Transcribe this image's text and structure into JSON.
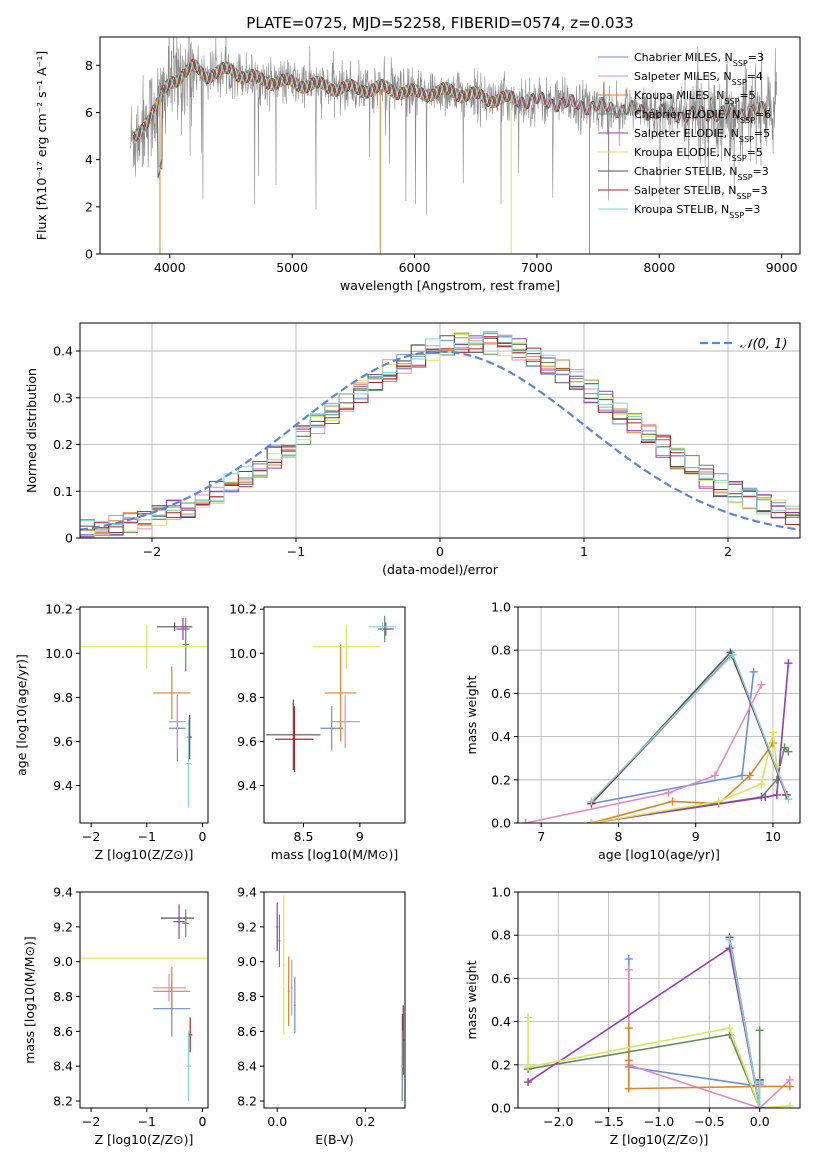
{
  "figure_title": "PLATE=0725, MJD=52258, FIBERID=0574, z=0.033",
  "colors": {
    "Chabrier MILES": "#6a8fd6",
    "Salpeter MILES": "#e38bbf",
    "Kroupa MILES": "#e0822a",
    "Chabrier ELODIE": "#5f8f5f",
    "Salpeter ELODIE": "#9b3bb0",
    "Kroupa ELODIE": "#d6e85a",
    "Chabrier STELIB": "#555555",
    "Salpeter STELIB": "#b22222",
    "Kroupa STELIB": "#7fd6d8",
    "data": "#8a8a8a",
    "normal": "#5b85d6",
    "grid": "#b0b0b0"
  },
  "chart_data": [
    {
      "id": "spectrum",
      "type": "line",
      "xlabel": "wavelength [Angstrom, rest frame]",
      "ylabel": "Flux [fλ10⁻¹⁷ erg cm⁻² s⁻¹ A⁻¹]",
      "xlim": [
        3430,
        9150
      ],
      "ylim": [
        0,
        9.2
      ],
      "xticks": [
        4000,
        5000,
        6000,
        7000,
        8000,
        9000
      ],
      "yticks": [
        0,
        2,
        4,
        6,
        8
      ],
      "grid": false,
      "legend_position": "top-right",
      "legend": [
        "Chabrier MILES, N_SSP=3",
        "Salpeter MILES, N_SSP=4",
        "Kroupa MILES, N_SSP=5",
        "Chabrier ELODIE, N_SSP=6",
        "Salpeter ELODIE, N_SSP=5",
        "Kroupa ELODIE, N_SSP=5",
        "Chabrier STELIB, N_SSP=3",
        "Salpeter STELIB, N_SSP=3",
        "Kroupa STELIB, N_SSP=3"
      ],
      "continuum": [
        [
          3700,
          4.8
        ],
        [
          3800,
          5.6
        ],
        [
          3900,
          6.3
        ],
        [
          4000,
          7.3
        ],
        [
          4100,
          7.6
        ],
        [
          4200,
          7.9
        ],
        [
          4300,
          7.6
        ],
        [
          4400,
          7.7
        ],
        [
          4500,
          7.8
        ],
        [
          4700,
          7.4
        ],
        [
          4900,
          7.3
        ],
        [
          5100,
          7.2
        ],
        [
          5300,
          7.1
        ],
        [
          5500,
          7.0
        ],
        [
          5800,
          7.0
        ],
        [
          6000,
          6.8
        ],
        [
          6300,
          6.9
        ],
        [
          6600,
          6.6
        ],
        [
          7000,
          6.5
        ],
        [
          7400,
          6.3
        ],
        [
          7800,
          6.1
        ],
        [
          8200,
          5.9
        ],
        [
          8600,
          6.0
        ],
        [
          8900,
          6.1
        ],
        [
          9000,
          6.15
        ]
      ]
    },
    {
      "id": "residuals",
      "type": "line",
      "xlabel": "(data-model)/error",
      "ylabel": "Normed distribution",
      "xlim": [
        -2.5,
        2.5
      ],
      "ylim": [
        0,
        0.46
      ],
      "xticks": [
        -2,
        -1,
        0,
        1,
        2
      ],
      "yticks": [
        0.0,
        0.1,
        0.2,
        0.3,
        0.4
      ],
      "grid": true,
      "legend_position": "top-right",
      "normal_label": "𝒩(0, 1)",
      "normal": {
        "mean": 0,
        "sigma": 1
      }
    },
    {
      "id": "age_Z",
      "type": "scatter",
      "xlabel": "Z [log10(Z/Z⊙)]",
      "ylabel": "age [log10(age/yr)]",
      "xlim": [
        -2.2,
        0.1
      ],
      "ylim": [
        9.23,
        10.21
      ],
      "xticks": [
        -2,
        -1,
        0
      ],
      "yticks": [
        9.4,
        9.6,
        9.8,
        10.0,
        10.2
      ],
      "points": [
        {
          "s": "Chabrier MILES",
          "x": -0.45,
          "xerr": 0.15,
          "y": 9.66,
          "yerr": 0.15
        },
        {
          "s": "Salpeter MILES",
          "x": -0.45,
          "xerr": 0.15,
          "y": 9.69,
          "yerr": 0.12
        },
        {
          "s": "Kroupa MILES",
          "x": -0.55,
          "xerr": 0.33,
          "y": 9.82,
          "yerr": 0.12
        },
        {
          "s": "Chabrier ELODIE",
          "x": -0.3,
          "xerr": 0.06,
          "y": 10.04,
          "yerr": 0.12
        },
        {
          "s": "Salpeter ELODIE",
          "x": -0.35,
          "xerr": 0.12,
          "y": 10.11,
          "yerr": 0.05
        },
        {
          "s": "Kroupa ELODIE",
          "x": -1.0,
          "xerr": 2.0,
          "y": 10.03,
          "yerr": 0.1
        },
        {
          "s": "Chabrier STELIB",
          "x": -0.5,
          "xerr": 0.32,
          "y": 10.12,
          "yerr": 0.02
        },
        {
          "s": "Salpeter STELIB",
          "x": -0.23,
          "xerr": 0.04,
          "y": 9.62,
          "yerr": 0.1
        },
        {
          "s": "Kroupa STELIB",
          "x": -0.25,
          "xerr": 0.04,
          "y": 9.5,
          "yerr": 0.2
        }
      ]
    },
    {
      "id": "age_mass",
      "type": "scatter",
      "xlabel": "mass [log10(M/M⊙)]",
      "ylabel": "",
      "xlim": [
        8.15,
        9.4
      ],
      "ylim": [
        9.23,
        10.21
      ],
      "xticks": [
        8.5,
        9.0
      ],
      "yticks": [
        9.4,
        9.6,
        9.8,
        10.0,
        10.2
      ],
      "points": [
        {
          "s": "Chabrier MILES",
          "x": 8.75,
          "xerr": 0.1,
          "y": 9.66,
          "yerr": 0.1
        },
        {
          "s": "Salpeter MILES",
          "x": 8.87,
          "xerr": 0.13,
          "y": 9.69,
          "yerr": 0.12
        },
        {
          "s": "Kroupa MILES",
          "x": 8.83,
          "xerr": 0.14,
          "y": 9.82,
          "yerr": 0.22
        },
        {
          "s": "Chabrier ELODIE",
          "x": 9.22,
          "xerr": 0.06,
          "y": 10.11,
          "yerr": 0.06
        },
        {
          "s": "Salpeter ELODIE",
          "x": 9.23,
          "xerr": 0.07,
          "y": 10.11,
          "yerr": 0.03
        },
        {
          "s": "Kroupa ELODIE",
          "x": 8.88,
          "xerr": 0.3,
          "y": 10.03,
          "yerr": 0.1
        },
        {
          "s": "Chabrier STELIB",
          "x": 8.41,
          "xerr": 0.24,
          "y": 9.63,
          "yerr": 0.16
        },
        {
          "s": "Salpeter STELIB",
          "x": 8.42,
          "xerr": 0.17,
          "y": 9.61,
          "yerr": 0.15
        },
        {
          "s": "Kroupa STELIB",
          "x": 9.2,
          "xerr": 0.12,
          "y": 10.12,
          "yerr": 0.02
        }
      ]
    },
    {
      "id": "mw_age",
      "type": "line",
      "xlabel": "age [log10(age/yr)]",
      "ylabel": "mass weight",
      "xlim": [
        6.7,
        10.35
      ],
      "ylim": [
        0,
        1.0
      ],
      "xticks": [
        7,
        8,
        9,
        10
      ],
      "yticks": [
        0.0,
        0.2,
        0.4,
        0.6,
        0.8,
        1.0
      ],
      "grid": true,
      "series": [
        {
          "s": "Chabrier MILES",
          "x": [
            7.65,
            9.6,
            9.75
          ],
          "y": [
            0.09,
            0.22,
            0.7
          ]
        },
        {
          "s": "Salpeter MILES",
          "x": [
            6.8,
            8.65,
            9.25,
            9.85
          ],
          "y": [
            0.0,
            0.14,
            0.22,
            0.64
          ]
        },
        {
          "s": "Kroupa MILES",
          "x": [
            7.65,
            8.7,
            9.3,
            9.7,
            10.0
          ],
          "y": [
            0.0,
            0.1,
            0.09,
            0.22,
            0.37
          ]
        },
        {
          "s": "Chabrier ELODIE",
          "x": [
            7.65,
            9.85,
            10.05,
            10.15,
            10.2
          ],
          "y": [
            0.0,
            0.12,
            0.2,
            0.35,
            0.33
          ]
        },
        {
          "s": "Salpeter ELODIE",
          "x": [
            7.65,
            9.9,
            10.05,
            10.2
          ],
          "y": [
            0.0,
            0.12,
            0.13,
            0.74
          ]
        },
        {
          "s": "Kroupa ELODIE",
          "x": [
            7.65,
            9.3,
            9.85,
            10.0,
            10.05
          ],
          "y": [
            0.0,
            0.1,
            0.18,
            0.42,
            0.26
          ]
        },
        {
          "s": "Chabrier STELIB",
          "x": [
            7.65,
            9.45,
            10.18
          ],
          "y": [
            0.09,
            0.79,
            0.13
          ]
        },
        {
          "s": "Salpeter STELIB",
          "x": [
            7.65,
            9.47,
            10.17
          ],
          "y": [
            0.09,
            0.78,
            0.13
          ]
        },
        {
          "s": "Kroupa STELIB",
          "x": [
            7.65,
            9.48,
            10.2
          ],
          "y": [
            0.1,
            0.78,
            0.11
          ]
        }
      ]
    },
    {
      "id": "mass_Z",
      "type": "scatter",
      "xlabel": "Z [log10(Z/Z⊙)]",
      "ylabel": "mass [log10(M/M⊙)]",
      "xlim": [
        -2.2,
        0.1
      ],
      "ylim": [
        8.16,
        9.4
      ],
      "xticks": [
        -2,
        -1,
        0
      ],
      "yticks": [
        8.2,
        8.4,
        8.6,
        8.8,
        9.0,
        9.2,
        9.4
      ],
      "points": [
        {
          "s": "Chabrier MILES",
          "x": -0.55,
          "xerr": 0.33,
          "y": 8.73,
          "yerr": 0.16
        },
        {
          "s": "Salpeter MILES",
          "x": -0.6,
          "xerr": 0.3,
          "y": 8.85,
          "yerr": 0.08
        },
        {
          "s": "Kroupa MILES",
          "x": -0.55,
          "xerr": 0.33,
          "y": 8.83,
          "yerr": 0.14
        },
        {
          "s": "Chabrier ELODIE",
          "x": -0.3,
          "xerr": 0.06,
          "y": 9.22,
          "yerr": 0.08
        },
        {
          "s": "Salpeter ELODIE",
          "x": -0.42,
          "xerr": 0.1,
          "y": 9.23,
          "yerr": 0.1
        },
        {
          "s": "Kroupa ELODIE",
          "x": -1.0,
          "xerr": 2.0,
          "y": 9.02,
          "yerr": 0.0
        },
        {
          "s": "Chabrier STELIB",
          "x": -0.45,
          "xerr": 0.3,
          "y": 9.25,
          "yerr": 0.0
        },
        {
          "s": "Salpeter STELIB",
          "x": -0.22,
          "xerr": 0.04,
          "y": 8.58,
          "yerr": 0.1
        },
        {
          "s": "Kroupa STELIB",
          "x": -0.25,
          "xerr": 0.04,
          "y": 8.4,
          "yerr": 0.2
        }
      ]
    },
    {
      "id": "mass_EBV",
      "type": "scatter",
      "xlabel": "E(B-V)",
      "ylabel": "",
      "xlim": [
        -0.03,
        0.29
      ],
      "ylim": [
        8.16,
        9.4
      ],
      "xticks": [
        0.0,
        0.2
      ],
      "yticks": [
        8.2,
        8.4,
        8.6,
        8.8,
        9.0,
        9.2,
        9.4
      ],
      "points": [
        {
          "s": "Chabrier MILES",
          "x": 0.04,
          "xerr": 0,
          "y": 8.75,
          "yerr": 0.16
        },
        {
          "s": "Salpeter MILES",
          "x": 0.033,
          "xerr": 0,
          "y": 8.85,
          "yerr": 0.16
        },
        {
          "s": "Kroupa MILES",
          "x": 0.026,
          "xerr": 0,
          "y": 8.83,
          "yerr": 0.2
        },
        {
          "s": "Chabrier ELODIE",
          "x": 0.005,
          "xerr": 0,
          "y": 9.12,
          "yerr": 0.15
        },
        {
          "s": "Salpeter ELODIE",
          "x": 0.0,
          "xerr": 0,
          "y": 9.2,
          "yerr": 0.14
        },
        {
          "s": "Kroupa ELODIE",
          "x": 0.015,
          "xerr": 0,
          "y": 8.98,
          "yerr": 0.4
        },
        {
          "s": "Chabrier STELIB",
          "x": 0.284,
          "xerr": 0,
          "y": 8.45,
          "yerr": 0.25
        },
        {
          "s": "Salpeter STELIB",
          "x": 0.286,
          "xerr": 0,
          "y": 8.55,
          "yerr": 0.2
        },
        {
          "s": "Kroupa STELIB",
          "x": 0.283,
          "xerr": 0,
          "y": 8.4,
          "yerr": 0.2
        }
      ]
    },
    {
      "id": "mw_Z",
      "type": "line",
      "xlabel": "Z [log10(Z/Z⊙)]",
      "ylabel": "mass weight",
      "xlim": [
        -2.4,
        0.4
      ],
      "ylim": [
        0,
        1.0
      ],
      "xticks": [
        -2.0,
        -1.5,
        -1.0,
        -0.5,
        0.0
      ],
      "yticks": [
        0.0,
        0.2,
        0.4,
        0.6,
        0.8,
        1.0
      ],
      "grid": true,
      "series": [
        {
          "s": "Chabrier MILES",
          "x": [
            -1.3,
            -1.3,
            0.0,
            0.0
          ],
          "y": [
            0.69,
            0.19,
            0.1,
            0.11
          ]
        },
        {
          "s": "Salpeter MILES",
          "x": [
            -1.3,
            -1.3,
            0.0,
            0.3
          ],
          "y": [
            0.64,
            0.2,
            0.0,
            0.13
          ]
        },
        {
          "s": "Kroupa MILES",
          "x": [
            -1.3,
            -1.3,
            -1.3,
            0.0,
            0.3
          ],
          "y": [
            0.37,
            0.22,
            0.09,
            0.1,
            0.1
          ]
        },
        {
          "s": "Chabrier ELODIE",
          "x": [
            -2.3,
            -0.3,
            0.0,
            0.0
          ],
          "y": [
            0.18,
            0.34,
            0.0,
            0.36
          ]
        },
        {
          "s": "Salpeter ELODIE",
          "x": [
            -2.3,
            -0.3,
            0.0,
            0.0
          ],
          "y": [
            0.12,
            0.74,
            0.0,
            0.13
          ]
        },
        {
          "s": "Kroupa ELODIE",
          "x": [
            -2.3,
            -2.3,
            -0.3,
            0.0,
            0.3
          ],
          "y": [
            0.42,
            0.19,
            0.37,
            0.0,
            0.01
          ]
        },
        {
          "s": "Chabrier STELIB",
          "x": [
            -0.3,
            0.0,
            0.0
          ],
          "y": [
            0.79,
            0.0,
            0.13
          ]
        },
        {
          "s": "Salpeter STELIB",
          "x": [
            -0.3,
            0.0,
            0.0
          ],
          "y": [
            0.78,
            0.0,
            0.12
          ]
        },
        {
          "s": "Kroupa STELIB",
          "x": [
            -0.3,
            0.0,
            0.0
          ],
          "y": [
            0.78,
            0.0,
            0.12
          ]
        }
      ]
    }
  ]
}
